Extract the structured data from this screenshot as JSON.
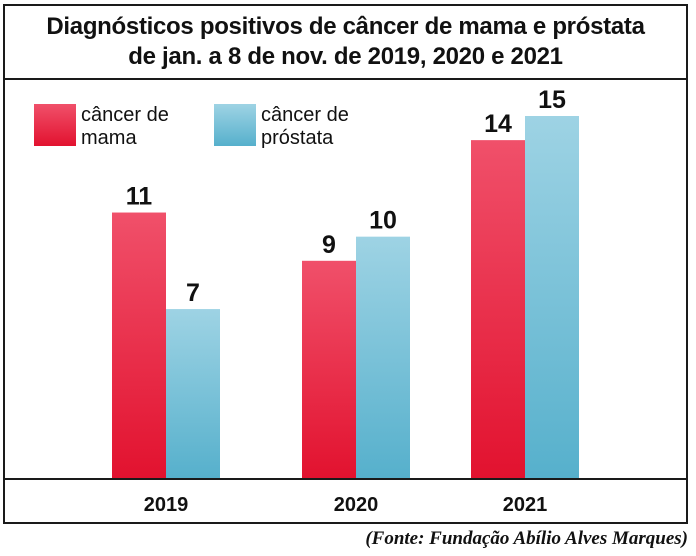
{
  "chart_data": {
    "type": "bar",
    "title": "Diagnósticos positivos de câncer de mama e próstata de jan. a 8 de nov. de 2019, 2020 e 2021",
    "title_lines": [
      "Diagnósticos positivos de câncer de mama e próstata",
      "de jan. a 8 de nov. de 2019, 2020 e 2021"
    ],
    "categories": [
      "2019",
      "2020",
      "2021"
    ],
    "series": [
      {
        "name": "câncer de mama",
        "legend_lines": [
          "câncer de",
          "mama"
        ],
        "values": [
          11,
          9,
          14
        ],
        "color_top": "#f0506a",
        "color_bottom": "#e2122f"
      },
      {
        "name": "câncer de próstata",
        "legend_lines": [
          "câncer de",
          "próstata"
        ],
        "values": [
          7,
          10,
          15
        ],
        "color_top": "#9ed3e4",
        "color_bottom": "#56b0cc"
      }
    ],
    "ylim": [
      0,
      15
    ],
    "xlabel": "",
    "ylabel": "",
    "grid": false,
    "legend": "top-left",
    "data_labels": true
  },
  "source": "(Fonte: Fundação Abílio Alves Marques)"
}
